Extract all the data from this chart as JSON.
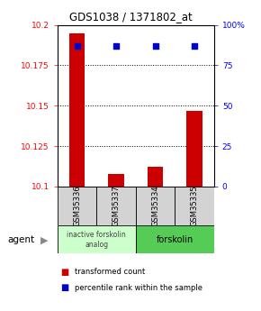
{
  "title": "GDS1038 / 1371802_at",
  "samples": [
    "GSM35336",
    "GSM35337",
    "GSM35334",
    "GSM35335"
  ],
  "bar_values": [
    10.195,
    10.108,
    10.112,
    10.147
  ],
  "percentile_values": [
    87,
    87,
    87,
    87
  ],
  "ylim_left": [
    10.1,
    10.2
  ],
  "ylim_right": [
    0,
    100
  ],
  "yticks_left": [
    10.1,
    10.125,
    10.15,
    10.175,
    10.2
  ],
  "ytick_labels_left": [
    "10.1",
    "10.125",
    "10.15",
    "10.175",
    "10.2"
  ],
  "yticks_right": [
    0,
    25,
    50,
    75,
    100
  ],
  "ytick_labels_right": [
    "0",
    "25",
    "50",
    "75",
    "100%"
  ],
  "bar_color": "#cc0000",
  "dot_color": "#0000cc",
  "bar_width": 0.4,
  "group1_label": "inactive forskolin\nanalog",
  "group1_color": "#ccffcc",
  "group2_label": "forskolin",
  "group2_color": "#55cc55",
  "agent_label": "agent",
  "legend_red_label": "transformed count",
  "legend_blue_label": "percentile rank within the sample",
  "legend_red_color": "#cc0000",
  "legend_blue_color": "#0000cc"
}
